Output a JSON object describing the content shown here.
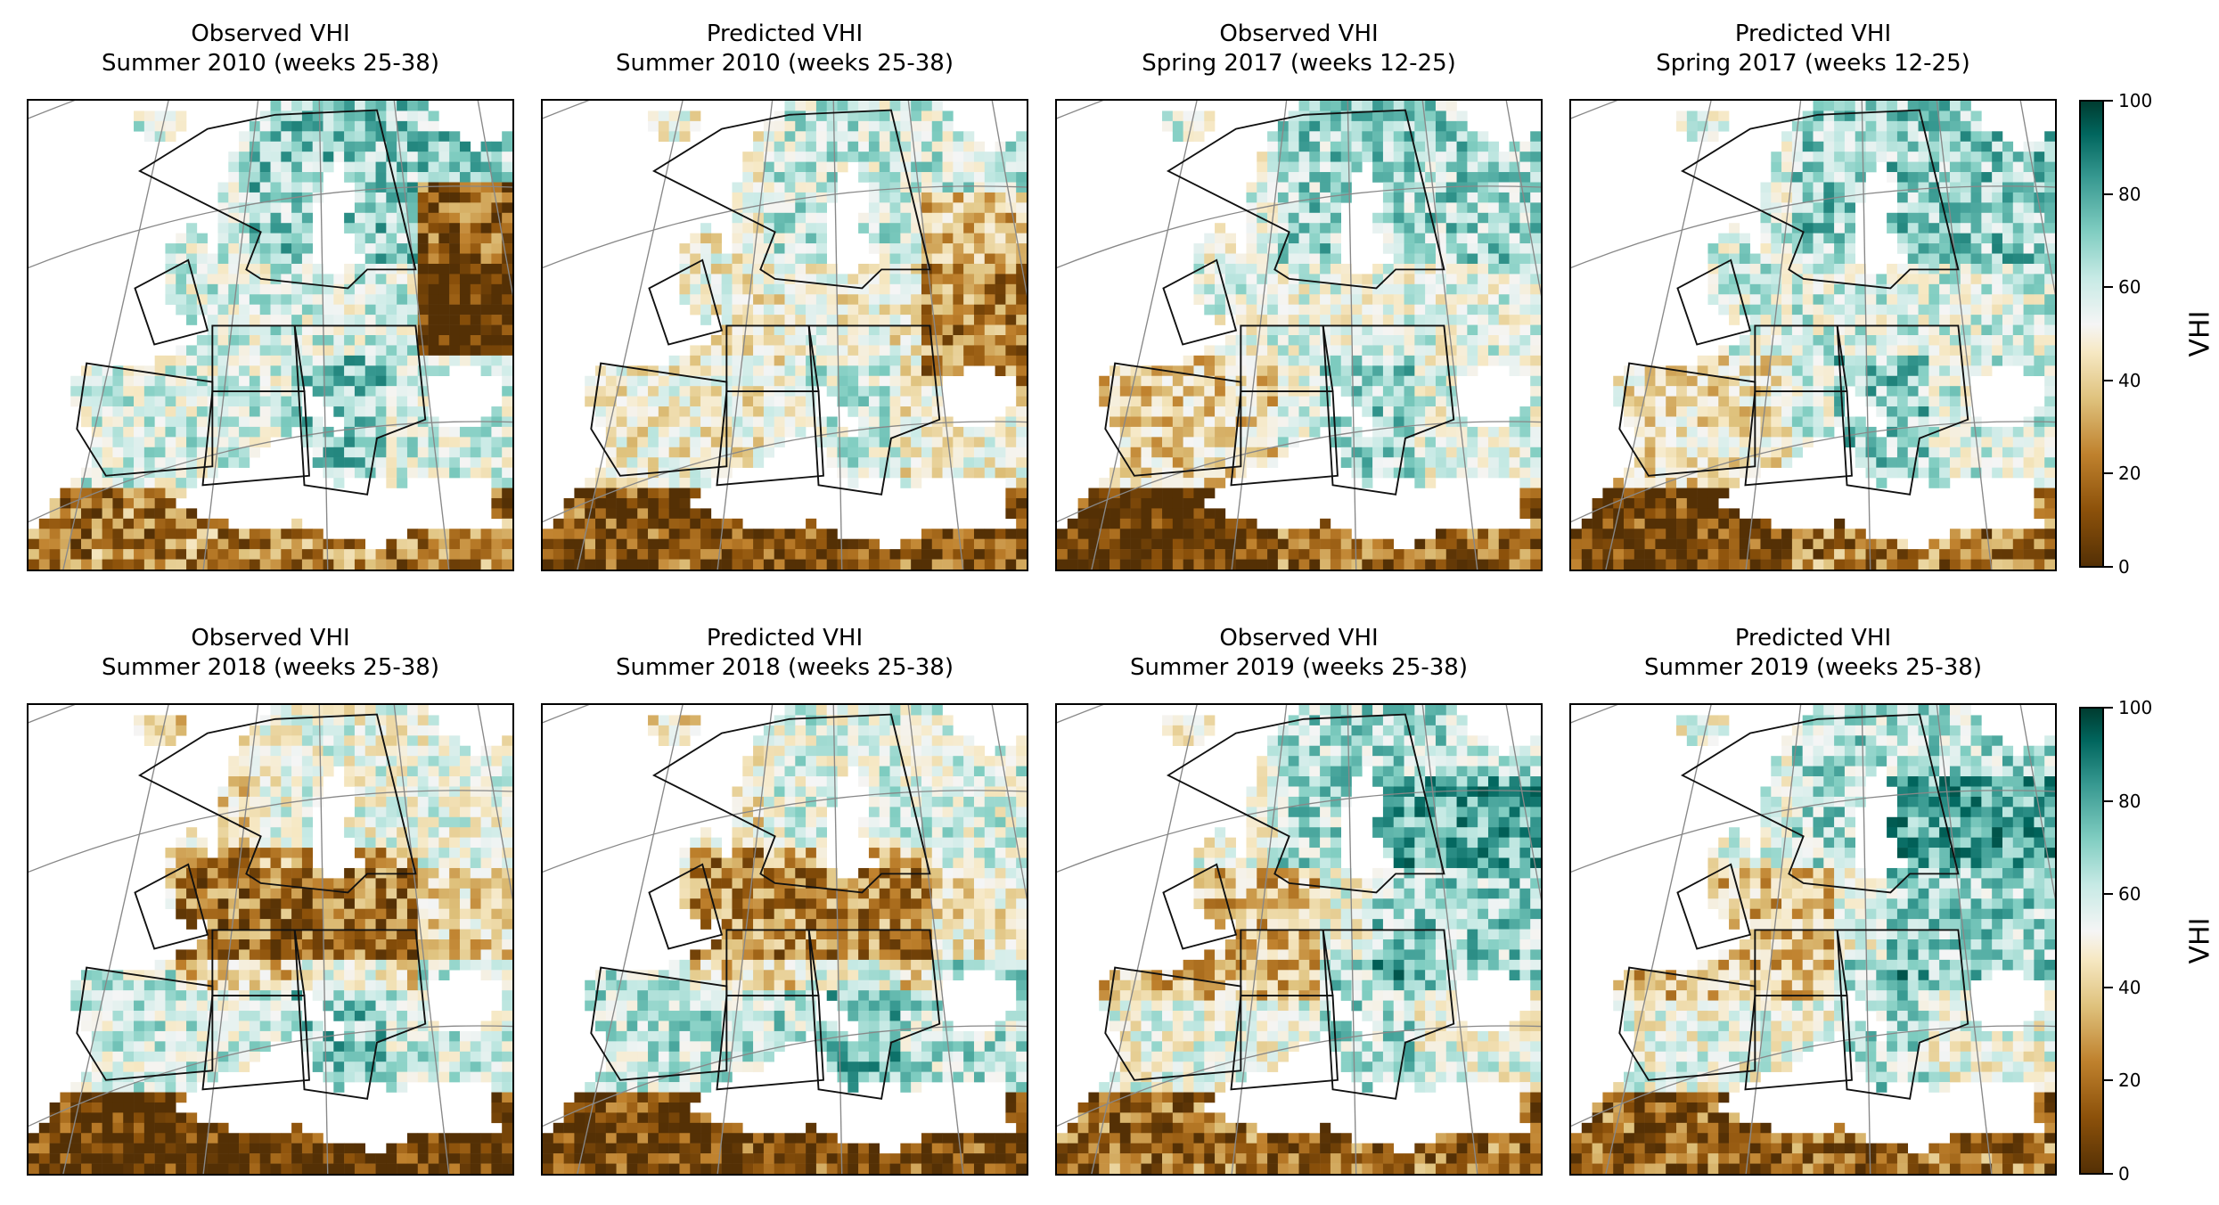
{
  "panels": [
    {
      "line1": "Observed VHI",
      "line2": "Summer 2010 (weeks 25-38)",
      "seed": 11,
      "bias": 0.55,
      "hot": "east"
    },
    {
      "line1": "Predicted VHI",
      "line2": "Summer 2010 (weeks 25-38)",
      "seed": 12,
      "bias": 0.45,
      "hot": "east-light"
    },
    {
      "line1": "Observed VHI",
      "line2": "Spring 2017 (weeks 12-25)",
      "seed": 13,
      "bias": 0.52,
      "hot": "south"
    },
    {
      "line1": "Predicted VHI",
      "line2": "Spring 2017 (weeks 12-25)",
      "seed": 14,
      "bias": 0.55,
      "hot": "south"
    },
    {
      "line1": "Observed VHI",
      "line2": "Summer 2018 (weeks 25-38)",
      "seed": 15,
      "bias": 0.38,
      "hot": "center"
    },
    {
      "line1": "Predicted VHI",
      "line2": "Summer 2018 (weeks 25-38)",
      "seed": 16,
      "bias": 0.42,
      "hot": "center"
    },
    {
      "line1": "Observed VHI",
      "line2": "Summer 2019 (weeks 25-38)",
      "seed": 17,
      "bias": 0.5,
      "hot": "west"
    },
    {
      "line1": "Predicted VHI",
      "line2": "Summer 2019 (weeks 25-38)",
      "seed": 18,
      "bias": 0.5,
      "hot": "west"
    }
  ],
  "colorbar": {
    "label": "VHI",
    "ticks": [
      "100",
      "80",
      "60",
      "40",
      "20",
      "0"
    ],
    "colors": [
      "#543005",
      "#8c510a",
      "#bf812d",
      "#dfc27d",
      "#f6e8c3",
      "#f5f5f5",
      "#c7eae5",
      "#80cdc1",
      "#35978f",
      "#01665e",
      "#003c30"
    ]
  }
}
